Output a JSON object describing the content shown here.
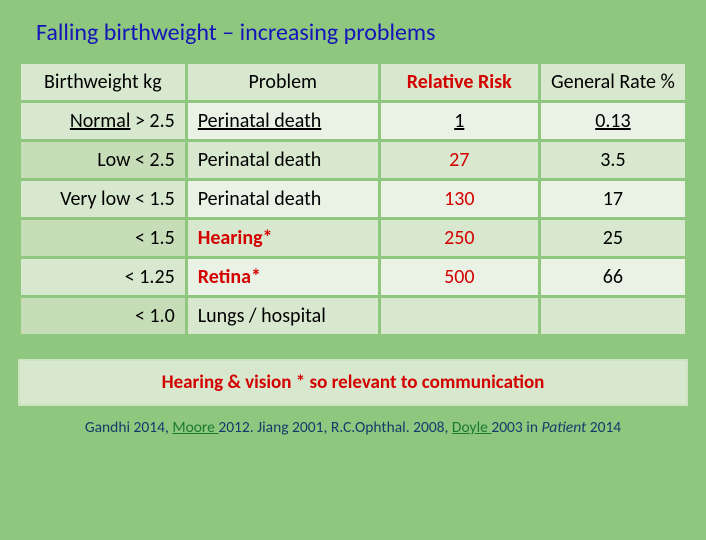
{
  "title": "Falling birthweight – increasing problems",
  "columns": [
    {
      "label": "Birthweight kg",
      "highlight": false
    },
    {
      "label": "Problem",
      "highlight": false
    },
    {
      "label": "Relative Risk",
      "highlight": true
    },
    {
      "label": "General Rate %",
      "highlight": false
    }
  ],
  "rows": [
    {
      "bw_prefix": "Normal",
      "bw_prefix_uline": true,
      "bw_val": " > 2.5",
      "problem": "Perinatal death",
      "problem_red": false,
      "problem_uline": true,
      "rr": "1",
      "rr_red": false,
      "rr_uline": true,
      "gr": "0.13",
      "gr_uline": true,
      "alt": false
    },
    {
      "bw_prefix": "Low",
      "bw_prefix_uline": false,
      "bw_val": " < 2.5",
      "problem": "Perinatal death",
      "problem_red": false,
      "problem_uline": false,
      "rr": "27",
      "rr_red": true,
      "rr_uline": false,
      "gr": "3.5",
      "gr_uline": false,
      "alt": true
    },
    {
      "bw_prefix": "Very low",
      "bw_prefix_uline": false,
      "bw_val": " < 1.5",
      "problem": "Perinatal death",
      "problem_red": false,
      "problem_uline": false,
      "rr": "130",
      "rr_red": true,
      "rr_uline": false,
      "gr": "17",
      "gr_uline": false,
      "alt": false
    },
    {
      "bw_prefix": "",
      "bw_prefix_uline": false,
      "bw_val": "< 1.5",
      "problem": "Hearing*",
      "problem_red": true,
      "problem_uline": false,
      "rr": "250",
      "rr_red": true,
      "rr_uline": false,
      "gr": "25",
      "gr_uline": false,
      "alt": true
    },
    {
      "bw_prefix": "",
      "bw_prefix_uline": false,
      "bw_val": "< 1.25",
      "problem": "Retina*",
      "problem_red": true,
      "problem_uline": false,
      "rr": "500",
      "rr_red": true,
      "rr_uline": false,
      "gr": "66",
      "gr_uline": false,
      "alt": false
    },
    {
      "bw_prefix": "",
      "bw_prefix_uline": false,
      "bw_val": "< 1.0",
      "problem": "Lungs / hospital",
      "problem_red": false,
      "problem_uline": false,
      "rr": "",
      "rr_red": false,
      "rr_uline": false,
      "gr": "",
      "gr_uline": false,
      "alt": true
    }
  ],
  "footnote": "Hearing & vision * so relevant to communication",
  "citation": {
    "p1": "Gandhi 2014,  ",
    "link1": "Moore ",
    "p2": "2012.  Jiang 2001,  R.C.Ophthal. 2008,  ",
    "link2": "Doyle ",
    "p3": "2003  in ",
    "ital": "Patient ",
    "p4": "2014"
  },
  "colors": {
    "page_bg": "#8fc77e",
    "title_color": "#1414b8",
    "header_bg": "#d8e8cf",
    "cell_bg": "#eaf2e6",
    "alt_bg": "#d8e8cf",
    "bw_alt_bg": "#c6ddb8",
    "red": "#d30000",
    "citation_color": "#153a6b",
    "link_color": "#1a7a2e"
  }
}
